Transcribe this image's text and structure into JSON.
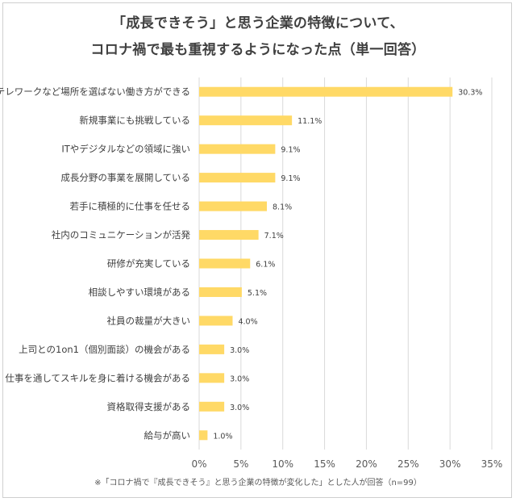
{
  "title_line1": "「成長できそう」と思う企業の特徴について、",
  "title_line2": "コロナ禍で最も重視するようになった点（単一回答）",
  "footnote": "※「コロナ禍で『成長できそう』と思う企業の特徴が変化した」とした人が回答（n=99）",
  "colors": {
    "bar": "#FFD966",
    "grid": "#d9d9d9",
    "text": "#404040"
  },
  "chart_data": {
    "type": "bar",
    "orientation": "horizontal",
    "categories": [
      "テレワークなど場所を選ばない働き方ができる",
      "新規事業にも挑戦している",
      "ITやデジタルなどの領域に強い",
      "成長分野の事業を展開している",
      "若手に積極的に仕事を任せる",
      "社内のコミュニケーションが活発",
      "研修が充実している",
      "相談しやすい環境がある",
      "社員の裁量が大きい",
      "上司との1on1（個別面談）の機会がある",
      "仕事を通してスキルを身に着ける機会がある",
      "資格取得支援がある",
      "給与が高い"
    ],
    "values": [
      30.3,
      11.1,
      9.1,
      9.1,
      8.1,
      7.1,
      6.1,
      5.1,
      4.0,
      3.0,
      3.0,
      3.0,
      1.0
    ],
    "value_labels": [
      "30.3%",
      "11.1%",
      "9.1%",
      "9.1%",
      "8.1%",
      "7.1%",
      "6.1%",
      "5.1%",
      "4.0%",
      "3.0%",
      "3.0%",
      "3.0%",
      "1.0%"
    ],
    "xlim": [
      0,
      35
    ],
    "x_ticks": [
      "0%",
      "5%",
      "10%",
      "15%",
      "20%",
      "25%",
      "30%",
      "35%"
    ],
    "grid": true
  }
}
